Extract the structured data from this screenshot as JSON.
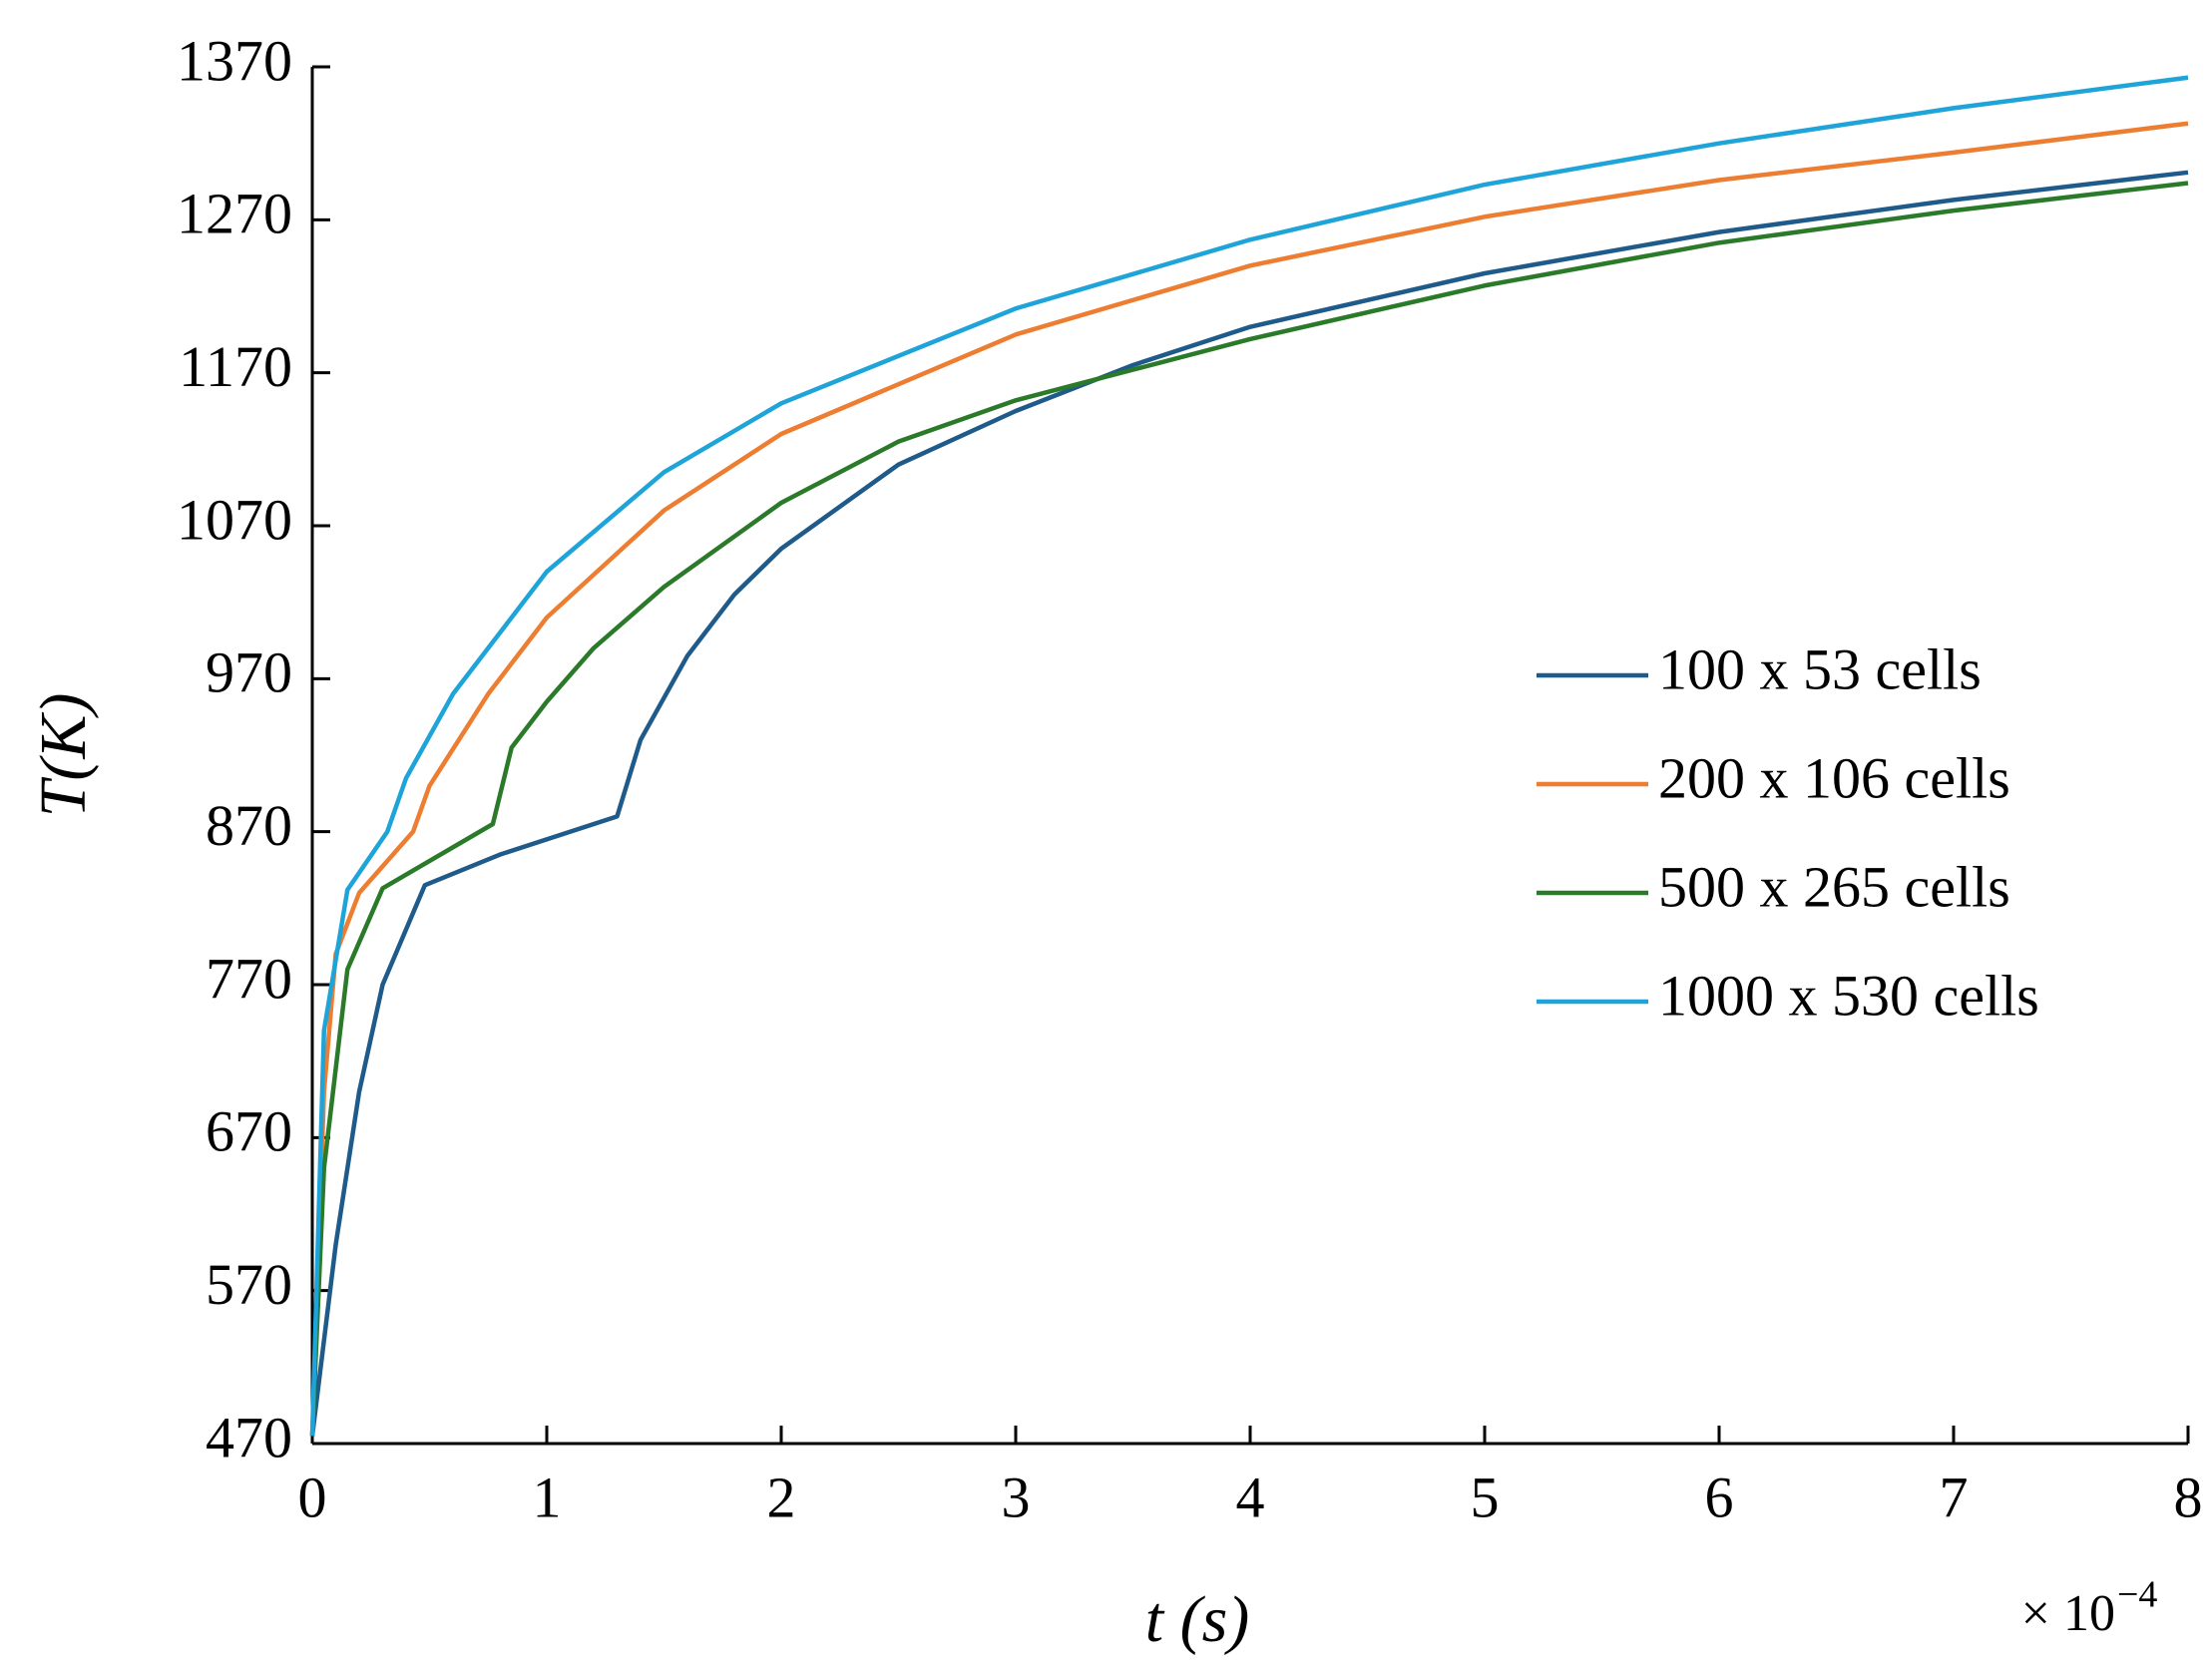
{
  "chart_data": {
    "type": "line",
    "x_label": "t (s)",
    "y_label": "T(K)",
    "x_scale_label": "× 10",
    "x_scale_exponent": "−4",
    "xlim": [
      0,
      8
    ],
    "xticks": [
      0,
      1,
      2,
      3,
      4,
      5,
      6,
      7,
      8
    ],
    "ylim": [
      470,
      1370
    ],
    "yticks": [
      470,
      570,
      670,
      770,
      870,
      970,
      1070,
      1170,
      1270,
      1370
    ],
    "legend": "right",
    "series": [
      {
        "name": "100 x 53 cells",
        "color": "#1f5b8a",
        "x": [
          0,
          0.1,
          0.2,
          0.3,
          0.48,
          0.8,
          1.3,
          1.4,
          1.6,
          1.8,
          2,
          2.5,
          3,
          3.5,
          4,
          5,
          6,
          7,
          8
        ],
        "values": [
          475,
          600,
          700,
          770,
          835,
          855,
          880,
          930,
          985,
          1025,
          1055,
          1110,
          1145,
          1175,
          1200,
          1235,
          1262,
          1283,
          1301
        ]
      },
      {
        "name": "200 x 106 cells",
        "color": "#ed7d31",
        "x": [
          0,
          0.05,
          0.1,
          0.2,
          0.43,
          0.5,
          0.75,
          1,
          1.5,
          2,
          3,
          4,
          5,
          6,
          7,
          8
        ],
        "values": [
          475,
          700,
          790,
          830,
          870,
          900,
          960,
          1010,
          1080,
          1130,
          1195,
          1240,
          1272,
          1296,
          1314,
          1333
        ]
      },
      {
        "name": "500 x 265 cells",
        "color": "#2a7a2a",
        "x": [
          0,
          0.05,
          0.15,
          0.3,
          0.77,
          0.85,
          1,
          1.2,
          1.5,
          2,
          2.5,
          3,
          3.5,
          4,
          5,
          6,
          7,
          8
        ],
        "values": [
          475,
          650,
          780,
          833,
          875,
          925,
          955,
          990,
          1030,
          1085,
          1125,
          1152,
          1172,
          1192,
          1227,
          1255,
          1276,
          1294
        ]
      },
      {
        "name": "1000 x 530 cells",
        "color": "#1ea4d8",
        "x": [
          0,
          0.05,
          0.15,
          0.32,
          0.4,
          0.6,
          1,
          1.5,
          2,
          3,
          4,
          5,
          6,
          7,
          8
        ],
        "values": [
          475,
          740,
          832,
          870,
          905,
          960,
          1040,
          1105,
          1150,
          1212,
          1257,
          1293,
          1320,
          1343,
          1363
        ]
      }
    ]
  }
}
